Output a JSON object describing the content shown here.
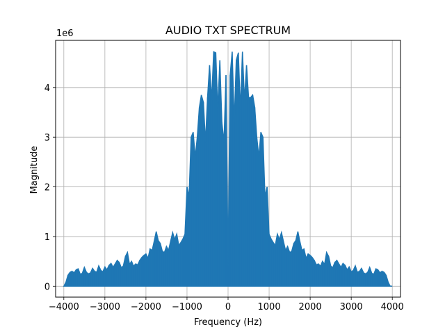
{
  "chart_data": {
    "type": "line",
    "title": "AUDIO TXT SPECTRUM",
    "xlabel": "Frequency (Hz)",
    "ylabel": "Magnitude",
    "y_offset_label": "1e6",
    "xlim": [
      -4200,
      4200
    ],
    "ylim": [
      -0.22,
      4.95
    ],
    "y_scale": 1000000,
    "x_ticks": [
      -4000,
      -3000,
      -2000,
      -1000,
      0,
      1000,
      2000,
      3000,
      4000
    ],
    "x_tick_labels": [
      "−4000",
      "−3000",
      "−2000",
      "−1000",
      "0",
      "1000",
      "2000",
      "3000",
      "4000"
    ],
    "y_ticks": [
      0,
      1,
      2,
      3,
      4
    ],
    "y_tick_labels": [
      "0",
      "1",
      "2",
      "3",
      "4"
    ],
    "grid": true,
    "series_color": "#1f77b4",
    "series": [
      {
        "x": [
          -4000,
          -3950,
          -3900,
          -3850,
          -3800,
          -3750,
          -3700,
          -3650,
          -3600,
          -3550,
          -3500,
          -3450,
          -3400,
          -3350,
          -3300,
          -3250,
          -3200,
          -3150,
          -3100,
          -3050,
          -3000,
          -2950,
          -2900,
          -2850,
          -2800,
          -2750,
          -2700,
          -2650,
          -2600,
          -2550,
          -2500,
          -2450,
          -2400,
          -2350,
          -2300,
          -2250,
          -2200,
          -2150,
          -2100,
          -2050,
          -2000,
          -1950,
          -1900,
          -1850,
          -1800,
          -1750,
          -1700,
          -1650,
          -1600,
          -1550,
          -1500,
          -1450,
          -1400,
          -1350,
          -1300,
          -1250,
          -1200,
          -1150,
          -1100,
          -1050,
          -1000,
          -950,
          -900,
          -850,
          -800,
          -750,
          -700,
          -650,
          -600,
          -550,
          -500,
          -450,
          -400,
          -350,
          -300,
          -250,
          -200,
          -150,
          -100,
          -50,
          0,
          50,
          100,
          150,
          200,
          250,
          300,
          350,
          400,
          450,
          500,
          550,
          600,
          650,
          700,
          750,
          800,
          850,
          900,
          950,
          1000,
          1050,
          1100,
          1150,
          1200,
          1250,
          1300,
          1350,
          1400,
          1450,
          1500,
          1550,
          1600,
          1650,
          1700,
          1750,
          1800,
          1850,
          1900,
          1950,
          2000,
          2050,
          2100,
          2150,
          2200,
          2250,
          2300,
          2350,
          2400,
          2450,
          2500,
          2550,
          2600,
          2650,
          2700,
          2750,
          2800,
          2850,
          2900,
          2950,
          3000,
          3050,
          3100,
          3150,
          3200,
          3250,
          3300,
          3350,
          3400,
          3450,
          3500,
          3550,
          3600,
          3650,
          3700,
          3750,
          3800,
          3850,
          3900,
          3950,
          4000
        ],
        "y": [
          0.0,
          0.08,
          0.22,
          0.28,
          0.3,
          0.27,
          0.33,
          0.35,
          0.24,
          0.26,
          0.38,
          0.28,
          0.25,
          0.27,
          0.36,
          0.3,
          0.28,
          0.41,
          0.32,
          0.29,
          0.39,
          0.33,
          0.42,
          0.46,
          0.38,
          0.45,
          0.52,
          0.48,
          0.37,
          0.41,
          0.6,
          0.68,
          0.44,
          0.5,
          0.4,
          0.45,
          0.43,
          0.52,
          0.58,
          0.62,
          0.65,
          0.56,
          0.75,
          0.72,
          0.9,
          1.1,
          0.92,
          0.86,
          0.7,
          0.68,
          0.8,
          0.72,
          0.9,
          1.08,
          0.94,
          1.05,
          0.82,
          0.88,
          0.95,
          1.05,
          2.0,
          1.8,
          3.0,
          3.1,
          2.6,
          3.0,
          3.6,
          3.85,
          3.7,
          2.9,
          3.8,
          4.45,
          3.75,
          4.72,
          4.7,
          3.55,
          4.55,
          3.3,
          2.9,
          4.25,
          0.4,
          4.25,
          4.72,
          3.3,
          4.55,
          4.7,
          3.55,
          4.72,
          3.75,
          4.45,
          3.8,
          3.8,
          3.85,
          3.6,
          3.0,
          2.6,
          3.1,
          3.0,
          1.8,
          2.0,
          1.05,
          0.95,
          0.88,
          0.82,
          1.05,
          0.94,
          1.08,
          0.9,
          0.72,
          0.8,
          0.68,
          0.7,
          0.86,
          0.92,
          1.1,
          0.9,
          0.72,
          0.75,
          0.56,
          0.65,
          0.62,
          0.58,
          0.52,
          0.43,
          0.45,
          0.4,
          0.5,
          0.44,
          0.68,
          0.6,
          0.41,
          0.37,
          0.48,
          0.52,
          0.45,
          0.38,
          0.46,
          0.42,
          0.33,
          0.39,
          0.29,
          0.32,
          0.41,
          0.28,
          0.3,
          0.36,
          0.27,
          0.25,
          0.28,
          0.38,
          0.26,
          0.24,
          0.35,
          0.33,
          0.27,
          0.3,
          0.28,
          0.22,
          0.08,
          0.0,
          0.0
        ]
      }
    ]
  }
}
